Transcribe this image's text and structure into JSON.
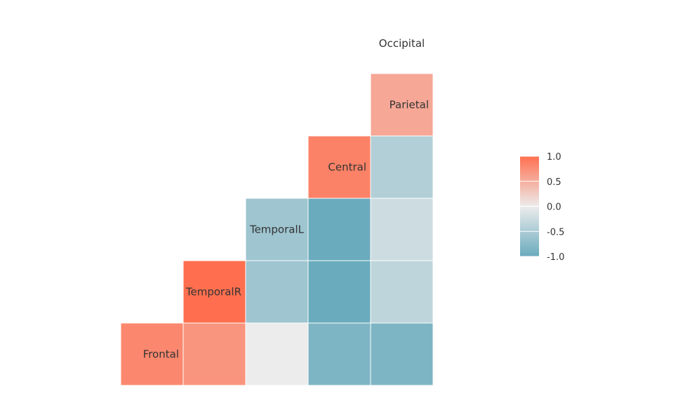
{
  "chart_data": {
    "type": "heatmap",
    "variables": [
      "Frontal",
      "TemporalR",
      "TemporalL",
      "Central",
      "Parietal",
      "Occipital"
    ],
    "cells": [
      {
        "row": "Frontal",
        "col": "Frontal",
        "value": 0.8
      },
      {
        "row": "Frontal",
        "col": "TemporalR",
        "value": 0.7
      },
      {
        "row": "Frontal",
        "col": "TemporalL",
        "value": 0.0
      },
      {
        "row": "Frontal",
        "col": "Central",
        "value": -0.85
      },
      {
        "row": "Frontal",
        "col": "Parietal",
        "value": -0.85
      },
      {
        "row": "TemporalR",
        "col": "TemporalR",
        "value": 1.0
      },
      {
        "row": "TemporalR",
        "col": "TemporalL",
        "value": -0.6
      },
      {
        "row": "TemporalR",
        "col": "Central",
        "value": -1.0
      },
      {
        "row": "TemporalR",
        "col": "Parietal",
        "value": -0.35
      },
      {
        "row": "TemporalL",
        "col": "TemporalL",
        "value": -0.6
      },
      {
        "row": "TemporalL",
        "col": "Central",
        "value": -1.0
      },
      {
        "row": "TemporalL",
        "col": "Parietal",
        "value": -0.25
      },
      {
        "row": "Central",
        "col": "Central",
        "value": 0.85
      },
      {
        "row": "Central",
        "col": "Parietal",
        "value": -0.45
      },
      {
        "row": "Parietal",
        "col": "Parietal",
        "value": 0.55
      }
    ],
    "scale": {
      "min": -1.0,
      "max": 1.0,
      "low_color": "#6aabbd",
      "mid_color": "#ececec",
      "high_color": "#ff6f4f",
      "ticks": [
        {
          "value": 1.0,
          "label": "1.0"
        },
        {
          "value": 0.5,
          "label": "0.5"
        },
        {
          "value": 0.0,
          "label": "0.0"
        },
        {
          "value": -0.5,
          "label": "-0.5"
        },
        {
          "value": -1.0,
          "label": "-1.0"
        }
      ]
    },
    "legend_position": "right",
    "grid": false
  }
}
